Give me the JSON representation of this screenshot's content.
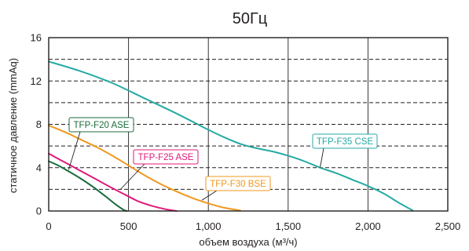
{
  "chart_data": {
    "type": "line",
    "title": "50Гц",
    "xlabel": "объем воздуха (м³/ч)",
    "ylabel": "статичное давление (mmAq)",
    "xlim": [
      0,
      2500
    ],
    "ylim": [
      0,
      16
    ],
    "x_ticks": [
      0,
      500,
      1000,
      1500,
      2000,
      2500
    ],
    "x_tick_labels": [
      "0",
      "500",
      "1,000",
      "1,500",
      "2,000",
      "2,500"
    ],
    "y_ticks": [
      0,
      4,
      8,
      12,
      16
    ],
    "y_tick_labels": [
      "0",
      "4",
      "8",
      "12",
      "16"
    ],
    "y_minor_gridlines": [
      2,
      6,
      10,
      14
    ],
    "grid": true,
    "legend": "callouts",
    "series": [
      {
        "name": "TFP-F20 ASE",
        "color": "#1a6b3c",
        "x": [
          0,
          60,
          120,
          200,
          280,
          360,
          420,
          470,
          490
        ],
        "y": [
          4.6,
          4.2,
          3.7,
          3.0,
          2.2,
          1.3,
          0.6,
          0.1,
          0
        ],
        "callout_at": [
          125,
          3.8
        ]
      },
      {
        "name": "TFP-F25 ASE",
        "color": "#e0187a",
        "x": [
          0,
          100,
          200,
          300,
          400,
          480,
          560,
          640,
          720,
          800
        ],
        "y": [
          5.3,
          4.5,
          3.7,
          2.9,
          2.1,
          1.5,
          0.9,
          0.5,
          0.2,
          0
        ],
        "callout_at": [
          450,
          2.0
        ]
      },
      {
        "name": "TFP-F30 BSE",
        "color": "#f0981e",
        "x": [
          0,
          100,
          200,
          300,
          400,
          500,
          600,
          700,
          800,
          900,
          1000,
          1100,
          1200
        ],
        "y": [
          7.9,
          7.3,
          6.6,
          5.9,
          5.1,
          4.2,
          3.3,
          2.5,
          1.8,
          1.2,
          0.7,
          0.3,
          0.05
        ],
        "callout_at": [
          960,
          1.0
        ]
      },
      {
        "name": "TFP-F35 CSE",
        "color": "#25aaa4",
        "x": [
          0,
          200,
          400,
          600,
          800,
          1000,
          1100,
          1200,
          1300,
          1400,
          1500,
          1600,
          1700,
          1800,
          1900,
          2000,
          2100,
          2200,
          2280
        ],
        "y": [
          13.8,
          12.9,
          11.8,
          10.4,
          9.0,
          7.5,
          6.8,
          6.2,
          5.8,
          5.5,
          5.1,
          4.6,
          4.0,
          3.5,
          2.9,
          2.3,
          1.6,
          0.7,
          0.05
        ],
        "callout_at": [
          1700,
          4.0
        ]
      }
    ]
  }
}
